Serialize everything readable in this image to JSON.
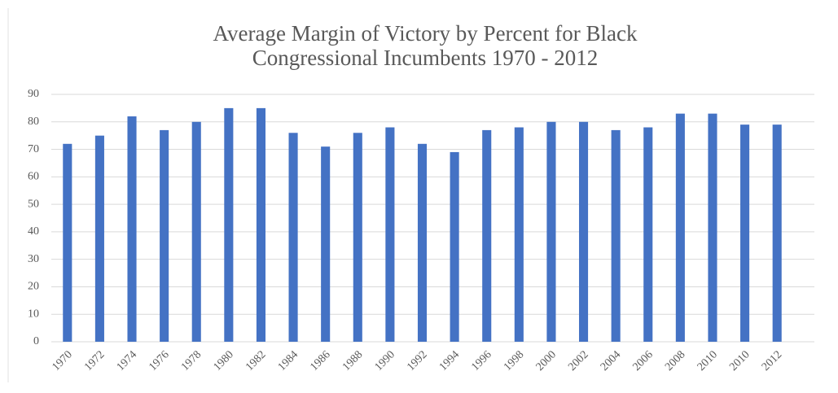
{
  "chart_data": {
    "type": "bar",
    "title": [
      "Average Margin of Victory by Percent for Black",
      "Congressional Incumbents  1970 - 2012"
    ],
    "categories": [
      "1970",
      "1972",
      "1974",
      "1976",
      "1978",
      "1980",
      "1982",
      "1984",
      "1986",
      "1988",
      "1990",
      "1992",
      "1994",
      "1996",
      "1998",
      "2000",
      "2002",
      "2004",
      "2006",
      "2008",
      "2010",
      "2010",
      "2012"
    ],
    "values": [
      72,
      75,
      82,
      77,
      80,
      85,
      85,
      76,
      71,
      76,
      78,
      72,
      69,
      77,
      78,
      80,
      80,
      77,
      78,
      83,
      83,
      79,
      79
    ],
    "color": "#4472c4",
    "ylim": [
      0,
      90
    ],
    "yticks": [
      0,
      10,
      20,
      30,
      40,
      50,
      60,
      70,
      80,
      90
    ],
    "grid": true
  }
}
